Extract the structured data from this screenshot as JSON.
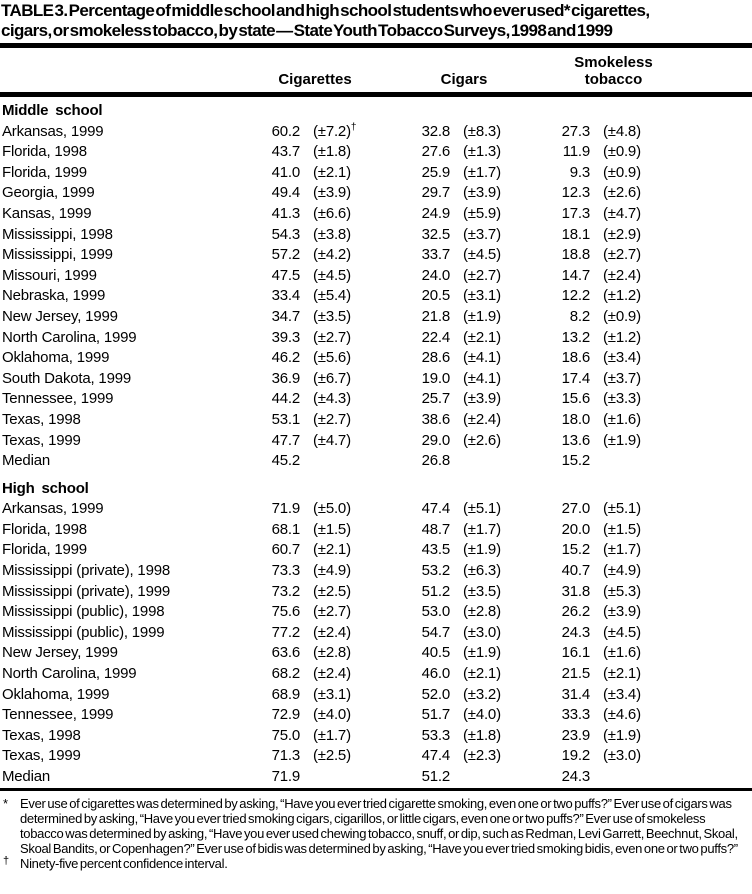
{
  "title_lines": [
    "TABLE 3. Percentage of middle school and high school students who ever used* cigarettes,",
    "cigars, or smokeless tobacco, by state — State Youth Tobacco Surveys, 1998 and 1999"
  ],
  "columns": [
    "Cigarettes",
    "Cigars",
    "Smokeless tobacco"
  ],
  "sections": [
    {
      "label": "Middle school",
      "rows": [
        {
          "state": "Arkansas, 1999",
          "cigarettes": "60.2",
          "cigarettes_ci": "(±7.2)",
          "cigarettes_ci_sup": "†",
          "cigars": "32.8",
          "cigars_ci": "(±8.3)",
          "smokeless": "27.3",
          "smokeless_ci": "(±4.8)"
        },
        {
          "state": "Florida, 1998",
          "cigarettes": "43.7",
          "cigarettes_ci": "(±1.8)",
          "cigars": "27.6",
          "cigars_ci": "(±1.3)",
          "smokeless": "11.9",
          "smokeless_ci": "(±0.9)"
        },
        {
          "state": "Florida, 1999",
          "cigarettes": "41.0",
          "cigarettes_ci": "(±2.1)",
          "cigars": "25.9",
          "cigars_ci": "(±1.7)",
          "smokeless": "9.3",
          "smokeless_ci": "(±0.9)"
        },
        {
          "state": "Georgia, 1999",
          "cigarettes": "49.4",
          "cigarettes_ci": "(±3.9)",
          "cigars": "29.7",
          "cigars_ci": "(±3.9)",
          "smokeless": "12.3",
          "smokeless_ci": "(±2.6)"
        },
        {
          "state": "Kansas, 1999",
          "cigarettes": "41.3",
          "cigarettes_ci": "(±6.6)",
          "cigars": "24.9",
          "cigars_ci": "(±5.9)",
          "smokeless": "17.3",
          "smokeless_ci": "(±4.7)"
        },
        {
          "state": "Mississippi, 1998",
          "cigarettes": "54.3",
          "cigarettes_ci": "(±3.8)",
          "cigars": "32.5",
          "cigars_ci": "(±3.7)",
          "smokeless": "18.1",
          "smokeless_ci": "(±2.9)"
        },
        {
          "state": "Mississippi, 1999",
          "cigarettes": "57.2",
          "cigarettes_ci": "(±4.2)",
          "cigars": "33.7",
          "cigars_ci": "(±4.5)",
          "smokeless": "18.8",
          "smokeless_ci": "(±2.7)"
        },
        {
          "state": "Missouri, 1999",
          "cigarettes": "47.5",
          "cigarettes_ci": "(±4.5)",
          "cigars": "24.0",
          "cigars_ci": "(±2.7)",
          "smokeless": "14.7",
          "smokeless_ci": "(±2.4)"
        },
        {
          "state": "Nebraska, 1999",
          "cigarettes": "33.4",
          "cigarettes_ci": "(±5.4)",
          "cigars": "20.5",
          "cigars_ci": "(±3.1)",
          "smokeless": "12.2",
          "smokeless_ci": "(±1.2)"
        },
        {
          "state": "New Jersey, 1999",
          "cigarettes": "34.7",
          "cigarettes_ci": "(±3.5)",
          "cigars": "21.8",
          "cigars_ci": "(±1.9)",
          "smokeless": "8.2",
          "smokeless_ci": "(±0.9)"
        },
        {
          "state": "North Carolina, 1999",
          "cigarettes": "39.3",
          "cigarettes_ci": "(±2.7)",
          "cigars": "22.4",
          "cigars_ci": "(±2.1)",
          "smokeless": "13.2",
          "smokeless_ci": "(±1.2)"
        },
        {
          "state": "Oklahoma, 1999",
          "cigarettes": "46.2",
          "cigarettes_ci": "(±5.6)",
          "cigars": "28.6",
          "cigars_ci": "(±4.1)",
          "smokeless": "18.6",
          "smokeless_ci": "(±3.4)"
        },
        {
          "state": "South Dakota, 1999",
          "cigarettes": "36.9",
          "cigarettes_ci": "(±6.7)",
          "cigars": "19.0",
          "cigars_ci": "(±4.1)",
          "smokeless": "17.4",
          "smokeless_ci": "(±3.7)"
        },
        {
          "state": "Tennessee, 1999",
          "cigarettes": "44.2",
          "cigarettes_ci": "(±4.3)",
          "cigars": "25.7",
          "cigars_ci": "(±3.9)",
          "smokeless": "15.6",
          "smokeless_ci": "(±3.3)"
        },
        {
          "state": "Texas, 1998",
          "cigarettes": "53.1",
          "cigarettes_ci": "(±2.7)",
          "cigars": "38.6",
          "cigars_ci": "(±2.4)",
          "smokeless": "18.0",
          "smokeless_ci": "(±1.6)"
        },
        {
          "state": "Texas, 1999",
          "cigarettes": "47.7",
          "cigarettes_ci": "(±4.7)",
          "cigars": "29.0",
          "cigars_ci": "(±2.6)",
          "smokeless": "13.6",
          "smokeless_ci": "(±1.9)"
        },
        {
          "state": "Median",
          "cigarettes": "45.2",
          "cigars": "26.8",
          "smokeless": "15.2"
        }
      ]
    },
    {
      "label": "High school",
      "rows": [
        {
          "state": "Arkansas, 1999",
          "cigarettes": "71.9",
          "cigarettes_ci": "(±5.0)",
          "cigars": "47.4",
          "cigars_ci": "(±5.1)",
          "smokeless": "27.0",
          "smokeless_ci": "(±5.1)"
        },
        {
          "state": "Florida, 1998",
          "cigarettes": "68.1",
          "cigarettes_ci": "(±1.5)",
          "cigars": "48.7",
          "cigars_ci": "(±1.7)",
          "smokeless": "20.0",
          "smokeless_ci": "(±1.5)"
        },
        {
          "state": "Florida, 1999",
          "cigarettes": "60.7",
          "cigarettes_ci": "(±2.1)",
          "cigars": "43.5",
          "cigars_ci": "(±1.9)",
          "smokeless": "15.2",
          "smokeless_ci": "(±1.7)"
        },
        {
          "state": "Mississippi (private), 1998",
          "cigarettes": "73.3",
          "cigarettes_ci": "(±4.9)",
          "cigars": "53.2",
          "cigars_ci": "(±6.3)",
          "smokeless": "40.7",
          "smokeless_ci": "(±4.9)"
        },
        {
          "state": "Mississippi (private), 1999",
          "cigarettes": "73.2",
          "cigarettes_ci": "(±2.5)",
          "cigars": "51.2",
          "cigars_ci": "(±3.5)",
          "smokeless": "31.8",
          "smokeless_ci": "(±5.3)"
        },
        {
          "state": "Mississippi (public), 1998",
          "cigarettes": "75.6",
          "cigarettes_ci": "(±2.7)",
          "cigars": "53.0",
          "cigars_ci": "(±2.8)",
          "smokeless": "26.2",
          "smokeless_ci": "(±3.9)"
        },
        {
          "state": "Mississippi (public), 1999",
          "cigarettes": "77.2",
          "cigarettes_ci": "(±2.4)",
          "cigars": "54.7",
          "cigars_ci": "(±3.0)",
          "smokeless": "24.3",
          "smokeless_ci": "(±4.5)"
        },
        {
          "state": "New Jersey, 1999",
          "cigarettes": "63.6",
          "cigarettes_ci": "(±2.8)",
          "cigars": "40.5",
          "cigars_ci": "(±1.9)",
          "smokeless": "16.1",
          "smokeless_ci": "(±1.6)"
        },
        {
          "state": "North Carolina, 1999",
          "cigarettes": "68.2",
          "cigarettes_ci": "(±2.4)",
          "cigars": "46.0",
          "cigars_ci": "(±2.1)",
          "smokeless": "21.5",
          "smokeless_ci": "(±2.1)"
        },
        {
          "state": "Oklahoma, 1999",
          "cigarettes": "68.9",
          "cigarettes_ci": "(±3.1)",
          "cigars": "52.0",
          "cigars_ci": "(±3.2)",
          "smokeless": "31.4",
          "smokeless_ci": "(±3.4)"
        },
        {
          "state": "Tennessee, 1999",
          "cigarettes": "72.9",
          "cigarettes_ci": "(±4.0)",
          "cigars": "51.7",
          "cigars_ci": "(±4.0)",
          "smokeless": "33.3",
          "smokeless_ci": "(±4.6)"
        },
        {
          "state": "Texas, 1998",
          "cigarettes": "75.0",
          "cigarettes_ci": "(±1.7)",
          "cigars": "53.3",
          "cigars_ci": "(±1.8)",
          "smokeless": "23.9",
          "smokeless_ci": "(±1.9)"
        },
        {
          "state": "Texas, 1999",
          "cigarettes": "71.3",
          "cigarettes_ci": "(±2.5)",
          "cigars": "47.4",
          "cigars_ci": "(±2.3)",
          "smokeless": "19.2",
          "smokeless_ci": "(±3.0)"
        },
        {
          "state": "Median",
          "cigarettes": "71.9",
          "cigars": "51.2",
          "smokeless": "24.3"
        }
      ]
    }
  ],
  "footnotes": [
    {
      "marker": "*",
      "text": "Ever use of cigarettes was determined by asking, “Have you ever tried cigarette smoking, even one or two puffs?” Ever use of cigars was determined by asking, “Have you ever tried smoking cigars, cigarillos, or little cigars, even one or two puffs?” Ever use of smokeless tobacco was determined by asking, “Have you ever used chewing tobacco, snuff, or dip, such as Redman, Levi Garrett, Beechnut, Skoal, Skoal Bandits, or Copenhagen?” Ever use of bidis was determined by asking, “Have you ever tried smoking bidis, even one or two puffs?”"
    },
    {
      "marker": "†",
      "text": "Ninety-five percent confidence interval."
    }
  ]
}
